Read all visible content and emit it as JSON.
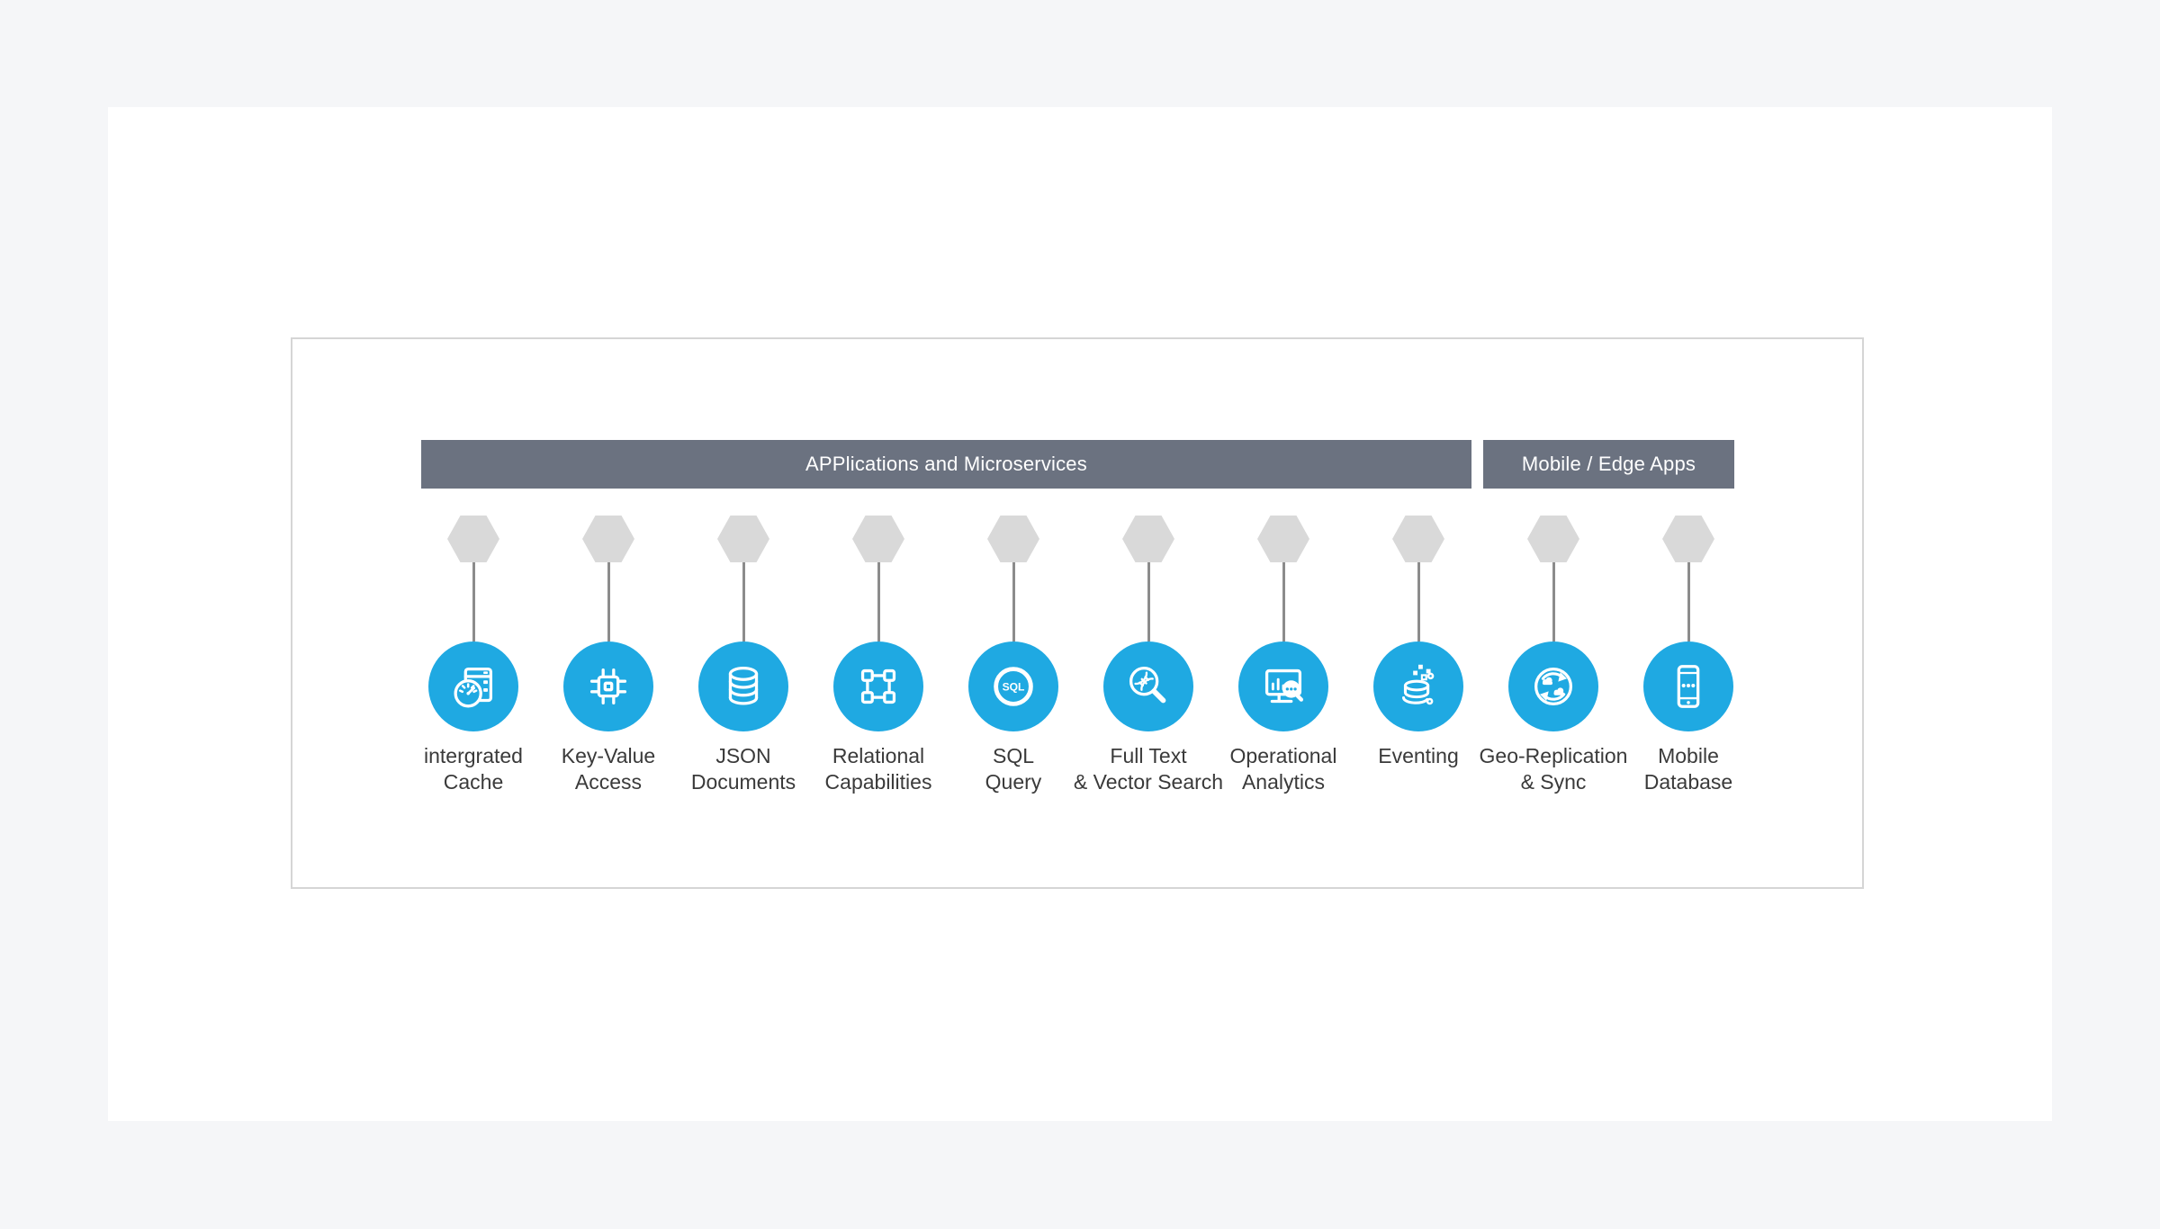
{
  "diagram": {
    "group_bars": [
      {
        "label": "APPlications and Microservices"
      },
      {
        "label": "Mobile / Edge Apps"
      }
    ],
    "columns": [
      {
        "icon": "integrated-cache-icon",
        "label_lines": [
          "intergrated",
          "Cache"
        ]
      },
      {
        "icon": "key-value-access-icon",
        "label_lines": [
          "Key-Value",
          "Access"
        ]
      },
      {
        "icon": "json-documents-icon",
        "label_lines": [
          "JSON",
          "Documents"
        ]
      },
      {
        "icon": "relational-capabilities-icon",
        "label_lines": [
          "Relational",
          "Capabilities"
        ]
      },
      {
        "icon": "sql-query-icon",
        "label_lines": [
          "SQL",
          "Query"
        ],
        "icon_text": "SQL"
      },
      {
        "icon": "fulltext-vector-search-icon",
        "label_lines": [
          "Full Text",
          "& Vector Search"
        ]
      },
      {
        "icon": "operational-analytics-icon",
        "label_lines": [
          "Operational",
          "Analytics"
        ]
      },
      {
        "icon": "eventing-icon",
        "label_lines": [
          "Eventing"
        ]
      },
      {
        "icon": "geo-replication-sync-icon",
        "label_lines": [
          "Geo-Replication",
          "& Sync"
        ]
      },
      {
        "icon": "mobile-database-icon",
        "label_lines": [
          "Mobile",
          "Database"
        ]
      }
    ],
    "colors": {
      "accent": "#1fa9e2",
      "bar": "#6b7280",
      "bar_text": "#ffffff",
      "hexagon": "#d9d9d9",
      "connector": "#8c8c8c",
      "page_background": "#f5f6f8",
      "panel_background": "#ffffff",
      "card_border": "#d5d5d5",
      "label_text": "#3a3a3a"
    }
  }
}
